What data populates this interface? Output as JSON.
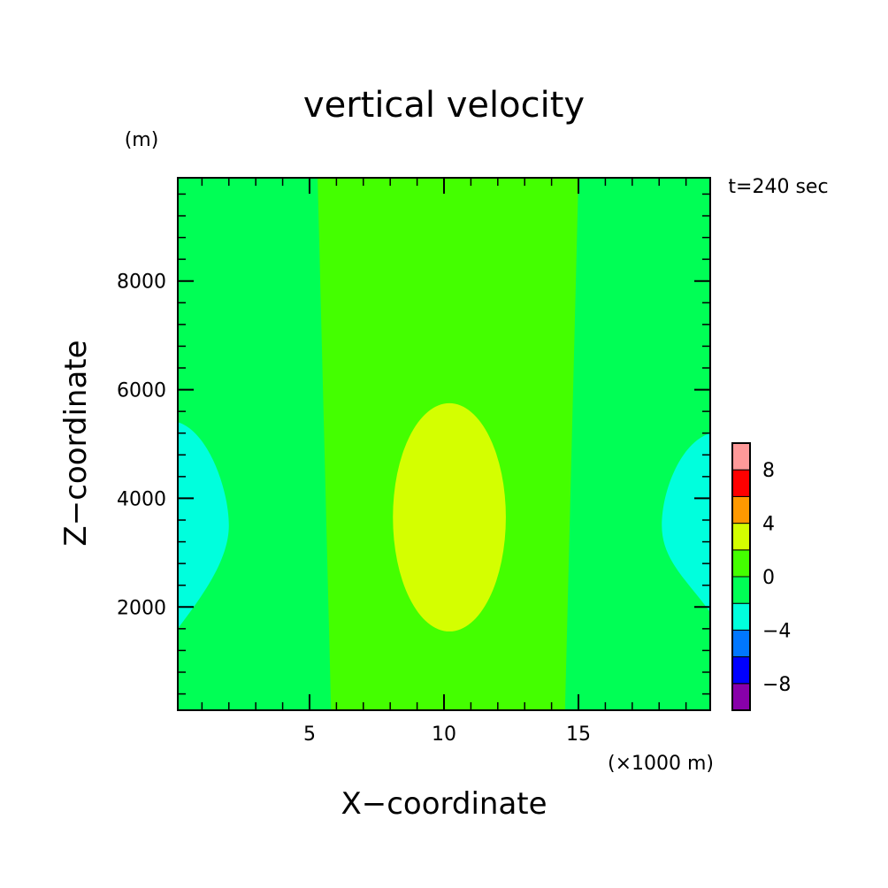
{
  "chart_data": {
    "type": "heatmap",
    "title": "vertical velocity",
    "xlabel": "X−coordinate",
    "ylabel": "Z−coordinate",
    "x_unit": "(×1000 m)",
    "y_unit": "(m)",
    "time_label": "t=240 sec",
    "xlim": [
      0.1,
      19.9
    ],
    "ylim": [
      100,
      9900
    ],
    "x_ticks": [
      5,
      10,
      15
    ],
    "y_ticks": [
      2000,
      4000,
      6000,
      8000
    ],
    "x_tick_labels": [
      "5",
      "10",
      "15"
    ],
    "y_tick_labels": [
      "2000",
      "4000",
      "6000",
      "8000"
    ],
    "x_minor_step": 1,
    "y_minor_step": 400,
    "grid": false,
    "regions": [
      {
        "level": "-2 to 0",
        "color": "#00ff55",
        "shape": "background"
      },
      {
        "level": "0 to 2",
        "color": "#44ff00",
        "shape": "polygon",
        "x": [
          5.3,
          15.0,
          14.5,
          5.8
        ],
        "z": [
          9900,
          9900,
          100,
          100
        ]
      },
      {
        "level": "2 to 4",
        "color": "#d4ff00",
        "shape": "ellipse",
        "center": [
          10.2,
          3650
        ],
        "radius_x": 2.1,
        "radius_z": 2100
      },
      {
        "level": "-4 to -2",
        "color": "#00ffdd",
        "shape": "left-lobe",
        "x_edge": 0.1,
        "x_reach": 2.0,
        "z_range": [
          1600,
          5400
        ],
        "z_peak": 3500
      },
      {
        "level": "-4 to -2",
        "color": "#00ffdd",
        "shape": "right-lobe",
        "x_edge": 19.9,
        "x_reach": 18.1,
        "z_range": [
          1900,
          5200
        ],
        "z_peak": 3500
      }
    ],
    "colorbar": {
      "levels": [
        -10,
        -8,
        -6,
        -4,
        -2,
        0,
        2,
        4,
        6,
        8,
        10
      ],
      "colors": [
        "#8800aa",
        "#0000ff",
        "#0077ff",
        "#00ffdd",
        "#00ff55",
        "#44ff00",
        "#d4ff00",
        "#ff9900",
        "#ff0000",
        "#ff9999"
      ],
      "labels": [
        {
          "value": -8,
          "text": "−8"
        },
        {
          "value": -4,
          "text": "−4"
        },
        {
          "value": 0,
          "text": "0"
        },
        {
          "value": 4,
          "text": "4"
        },
        {
          "value": 8,
          "text": "8"
        }
      ]
    }
  }
}
